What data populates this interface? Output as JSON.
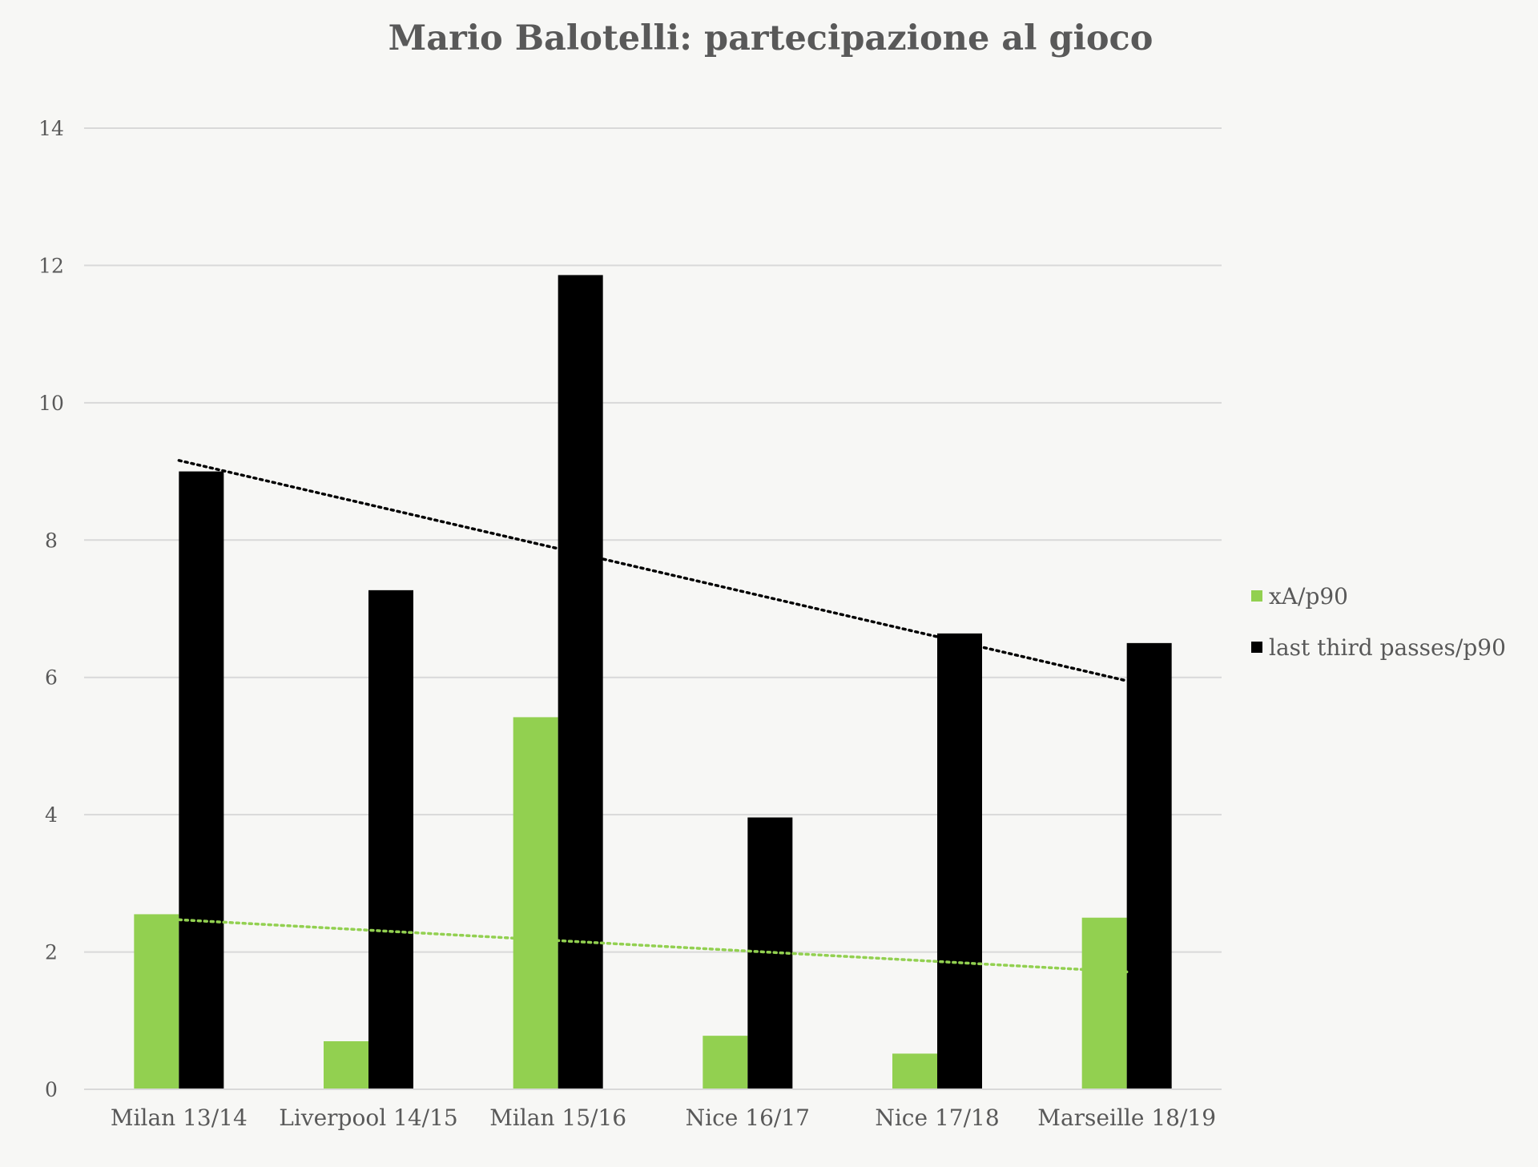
{
  "chart_data": {
    "type": "bar",
    "title": "Mario Balotelli: partecipazione al gioco",
    "xlabel": "",
    "ylabel": "",
    "categories": [
      "Milan 13/14",
      "Liverpool 14/15",
      "Milan 15/16",
      "Nice 16/17",
      "Nice 17/18",
      "Marseille 18/19"
    ],
    "series": [
      {
        "name": "xA/p90",
        "color": "#92d050",
        "values": [
          2.55,
          0.7,
          5.42,
          0.78,
          0.52,
          2.5
        ],
        "trendline": {
          "style": "dotted",
          "start": 2.47,
          "end": 1.71
        }
      },
      {
        "name": "last third passes/p90",
        "color": "#000000",
        "values": [
          9.0,
          7.27,
          11.86,
          3.96,
          6.64,
          6.5
        ],
        "trendline": {
          "style": "dotted",
          "start": 9.16,
          "end": 5.95
        }
      }
    ],
    "ylim": [
      0,
      14
    ],
    "yticks": [
      "0",
      "2",
      "4",
      "6",
      "8",
      "10",
      "12",
      "14"
    ],
    "grid": true,
    "legend": "right",
    "background": "#f7f7f5",
    "grid_color": "#d9d9d9",
    "text_color": "#595959"
  }
}
